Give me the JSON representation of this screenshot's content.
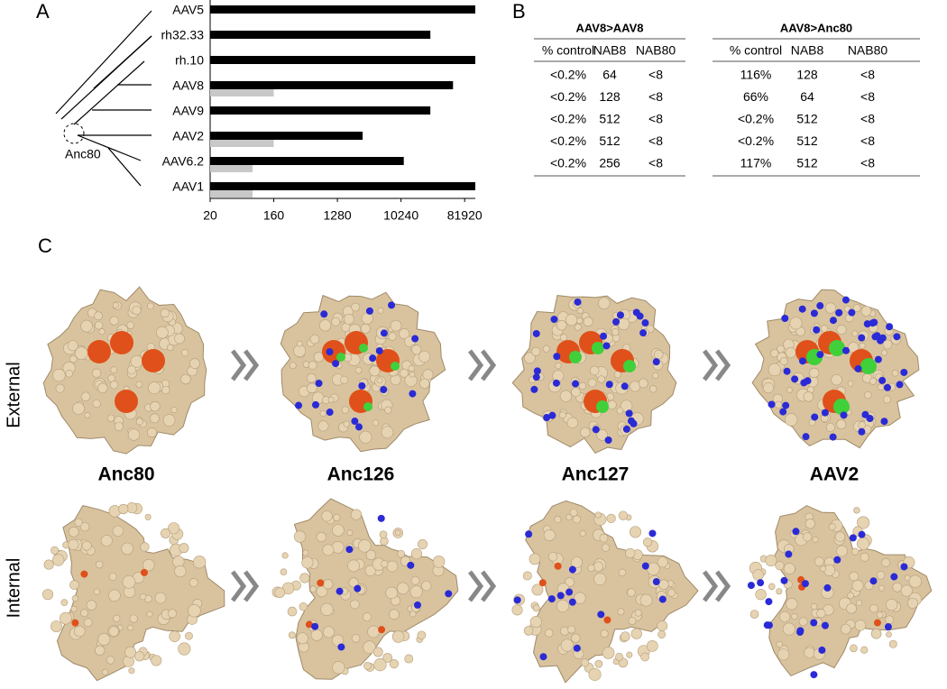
{
  "panels": [
    "A",
    "B",
    "C"
  ],
  "chart_data": {
    "type": "bar",
    "orientation": "horizontal",
    "xscale": "log",
    "categories": [
      "AAV5",
      "rh32.33",
      "rh.10",
      "AAV8",
      "AAV9",
      "AAV2",
      "AAV6.2",
      "AAV1"
    ],
    "series": [
      {
        "color": "#000000",
        "values": [
          116000,
          26700,
          116000,
          56000,
          26700,
          2920,
          11200,
          116000
        ]
      },
      {
        "color": "#c8c8c8",
        "values": [
          null,
          null,
          null,
          160,
          null,
          160,
          80,
          80
        ]
      }
    ],
    "xlim": [
      20,
      116000
    ],
    "xticks": [
      20,
      160,
      1280,
      10240,
      81920
    ],
    "annotations": [
      "Anc80"
    ]
  },
  "table_b": {
    "groups": [
      {
        "title": "AAV8>AAV8",
        "columns": [
          "% control",
          "NAB8",
          "NAB80"
        ],
        "rows": [
          [
            "<0.2%",
            64,
            "<8"
          ],
          [
            "<0.2%",
            128,
            "<8"
          ],
          [
            "<0.2%",
            512,
            "<8"
          ],
          [
            "<0.2%",
            512,
            "<8"
          ],
          [
            "<0.2%",
            256,
            "<8"
          ]
        ]
      },
      {
        "title": "AAV8>Anc80",
        "columns": [
          "% control",
          "NAB8",
          "NAB80"
        ],
        "rows": [
          [
            "116%",
            128,
            "<8"
          ],
          [
            "66%",
            64,
            "<8"
          ],
          [
            "<0.2%",
            512,
            "<8"
          ],
          [
            "<0.2%",
            512,
            "<8"
          ],
          [
            "117%",
            512,
            "<8"
          ]
        ]
      }
    ]
  },
  "panel_c": {
    "rows": [
      "External",
      "Internal"
    ],
    "structures": [
      "Anc80",
      "Anc126",
      "Anc127",
      "AAV2"
    ]
  }
}
